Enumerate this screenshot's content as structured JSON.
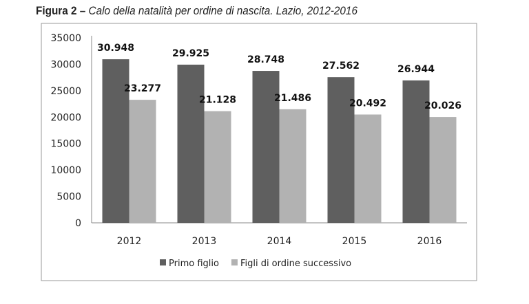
{
  "chart_data": {
    "type": "bar",
    "title_prefix": "Figura 2 –",
    "title": "Calo della natalità per ordine di nascita. Lazio, 2012-2016",
    "categories": [
      "2012",
      "2013",
      "2014",
      "2015",
      "2016"
    ],
    "series": [
      {
        "name": "Primo figlio",
        "values": [
          30948,
          29925,
          28748,
          27562,
          26944
        ],
        "labels": [
          "30.948",
          "29.925",
          "28.748",
          "27.562",
          "26.944"
        ],
        "color": "#5f5f5f"
      },
      {
        "name": "Figli di ordine successivo",
        "values": [
          23277,
          21128,
          21486,
          20492,
          20026
        ],
        "labels": [
          "23.277",
          "21.128",
          "21.486",
          "20.492",
          "20.026"
        ],
        "color": "#b2b2b2"
      }
    ],
    "yticks": [
      0,
      5000,
      10000,
      15000,
      20000,
      25000,
      30000,
      35000
    ],
    "ylim": [
      0,
      35000
    ],
    "grid": false,
    "legend": "bottom"
  }
}
